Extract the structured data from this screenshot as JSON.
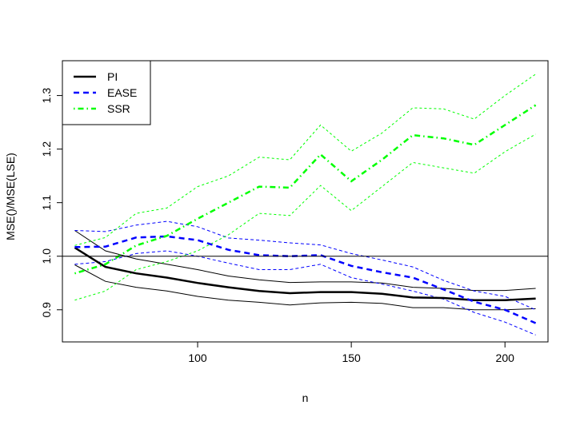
{
  "chart_data": {
    "type": "line",
    "title": "",
    "xlabel": "n",
    "ylabel": "MSE()/MSE(LSE)",
    "xlim": [
      56,
      214
    ],
    "ylim": [
      0.84,
      1.365
    ],
    "xticks": [
      100,
      150,
      200
    ],
    "yticks": [
      0.9,
      1.0,
      1.1,
      1.2,
      1.3
    ],
    "xtick_labels": [
      "100",
      "150",
      "200"
    ],
    "ytick_labels": [
      "0.9",
      "1.0",
      "1.1",
      "1.2",
      "1.3"
    ],
    "reference_line": 1.0,
    "grid": false,
    "legend_position": "top-left",
    "x": [
      60,
      70,
      80,
      90,
      100,
      110,
      120,
      130,
      140,
      150,
      160,
      170,
      180,
      190,
      200,
      210
    ],
    "series": [
      {
        "name": "PI",
        "color": "#000000",
        "linestyle": "solid",
        "values": [
          1.016,
          0.98,
          0.968,
          0.96,
          0.95,
          0.942,
          0.935,
          0.931,
          0.933,
          0.933,
          0.93,
          0.923,
          0.922,
          0.918,
          0.918,
          0.921
        ],
        "upper": [
          1.048,
          1.01,
          0.995,
          0.985,
          0.975,
          0.963,
          0.956,
          0.951,
          0.952,
          0.952,
          0.95,
          0.942,
          0.94,
          0.936,
          0.936,
          0.94
        ],
        "lower": [
          0.984,
          0.953,
          0.942,
          0.935,
          0.925,
          0.918,
          0.914,
          0.909,
          0.913,
          0.914,
          0.912,
          0.904,
          0.904,
          0.9,
          0.9,
          0.902
        ]
      },
      {
        "name": "EASE",
        "color": "#0000ff",
        "linestyle": "dashed",
        "values": [
          1.017,
          1.018,
          1.035,
          1.037,
          1.03,
          1.012,
          1.002,
          1.0,
          1.002,
          0.982,
          0.97,
          0.96,
          0.938,
          0.915,
          0.9,
          0.875
        ],
        "upper": [
          1.048,
          1.046,
          1.058,
          1.065,
          1.055,
          1.034,
          1.03,
          1.025,
          1.021,
          1.005,
          0.993,
          0.98,
          0.955,
          0.935,
          0.925,
          0.9
        ],
        "lower": [
          0.985,
          0.99,
          1.005,
          1.01,
          1.0,
          0.987,
          0.975,
          0.975,
          0.985,
          0.96,
          0.948,
          0.935,
          0.92,
          0.895,
          0.877,
          0.853
        ]
      },
      {
        "name": "SSR",
        "color": "#00ff00",
        "linestyle": "dotdash",
        "values": [
          0.968,
          0.985,
          1.02,
          1.038,
          1.07,
          1.1,
          1.13,
          1.128,
          1.19,
          1.14,
          1.18,
          1.226,
          1.22,
          1.208,
          1.245,
          1.282
        ],
        "upper": [
          1.02,
          1.035,
          1.08,
          1.09,
          1.13,
          1.15,
          1.185,
          1.18,
          1.245,
          1.196,
          1.23,
          1.277,
          1.275,
          1.256,
          1.3,
          1.34
        ],
        "lower": [
          0.918,
          0.935,
          0.975,
          0.99,
          1.01,
          1.04,
          1.08,
          1.076,
          1.132,
          1.085,
          1.13,
          1.175,
          1.165,
          1.155,
          1.195,
          1.228
        ]
      }
    ]
  }
}
